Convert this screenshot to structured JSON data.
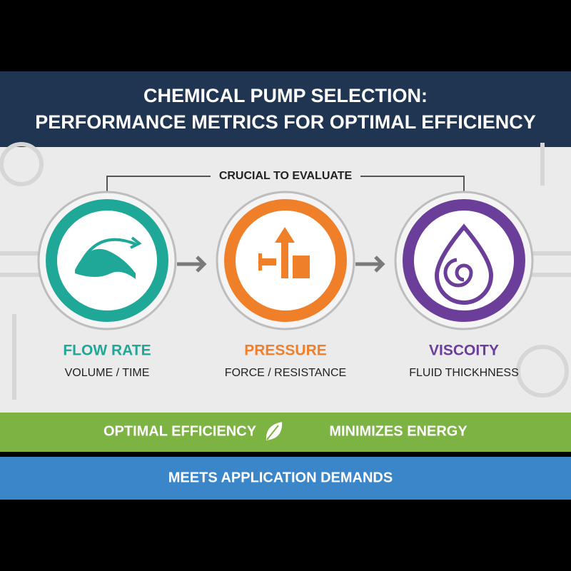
{
  "header": {
    "title_lines": [
      "CHEMICAL PUMP SELECTION:",
      "PERFORMANCE METRICS FOR OPTIMAL EFFICIENCY"
    ]
  },
  "bracket_label": "CRUCIAL TO EVALUATE",
  "metrics": [
    {
      "name": "FLOW RATE",
      "description": "VOLUME / TIME"
    },
    {
      "name": "PRESSURE",
      "description": "FORCE / RESISTANCE"
    },
    {
      "name": "VISCOITY",
      "description": "FLUID THICKHNESS"
    }
  ],
  "banners": {
    "green": [
      "OPTIMAL EFFICIENCY",
      "MINIMIZES ENERGY"
    ],
    "blue": "MEETS APPLICATION DEMANDS"
  }
}
